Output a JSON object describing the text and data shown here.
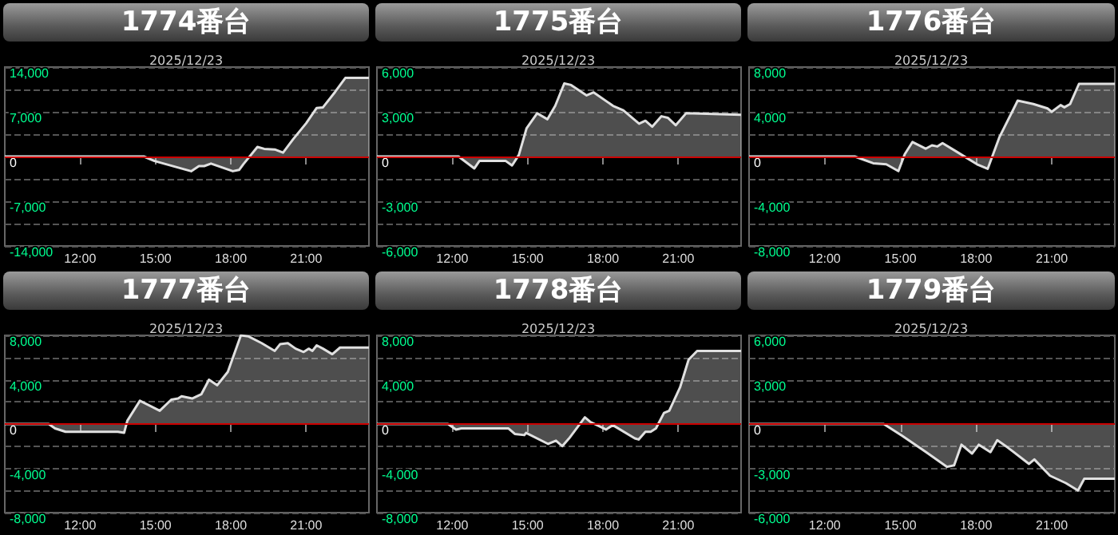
{
  "chart_data": [
    {
      "type": "area",
      "title": "1774番台",
      "subtitle": "2025/12/23",
      "color": "#e0e0e0",
      "grid": "y",
      "x": [
        9,
        14.54,
        14.96,
        16.42,
        16.73,
        16.94,
        17.21,
        18.08,
        18.33,
        18.5,
        19.06,
        19.33,
        19.75,
        20.08,
        20.48,
        21.0,
        21.42,
        21.67,
        22.15,
        22.56,
        23.5
      ],
      "values": [
        0,
        0,
        -700,
        -2300,
        -1500,
        -1500,
        -1100,
        -2300,
        -2100,
        -1200,
        1500,
        1200,
        1100,
        600,
        2700,
        5200,
        7600,
        7700,
        10100,
        12300,
        12300
      ],
      "xlim": [
        9,
        23.5
      ],
      "xticks": [
        {
          "value": 12,
          "label": "12:00"
        },
        {
          "value": 15,
          "label": "15:00"
        },
        {
          "value": 18,
          "label": "18:00"
        },
        {
          "value": 21,
          "label": "21:00"
        }
      ],
      "ylim": [
        -14000,
        14000
      ],
      "yticks": [
        {
          "value": -14000,
          "label": "-14,000"
        },
        {
          "value": -10500,
          "label": null
        },
        {
          "value": -7000,
          "label": "-7,000"
        },
        {
          "value": -3500,
          "label": null
        },
        {
          "value": 0,
          "label": "0"
        },
        {
          "value": 3500,
          "label": null
        },
        {
          "value": 7000,
          "label": "7,000"
        },
        {
          "value": 10500,
          "label": null
        },
        {
          "value": 14000,
          "label": "14,000"
        }
      ],
      "ref_lines": [
        {
          "axis": "y",
          "value": 0,
          "color": "#cc0000"
        }
      ]
    },
    {
      "type": "area",
      "title": "1775番台",
      "subtitle": "2025/12/23",
      "color": "#e0e0e0",
      "grid": "y",
      "x": [
        9,
        12.25,
        12.88,
        13.08,
        14.13,
        14.38,
        14.65,
        14.96,
        15.38,
        15.79,
        16.1,
        16.46,
        16.73,
        17.35,
        17.63,
        18.4,
        18.81,
        19.44,
        19.69,
        19.96,
        20.33,
        20.58,
        20.9,
        21.31,
        23.5
      ],
      "values": [
        0,
        0,
        -800,
        -300,
        -300,
        -600,
        100,
        1900,
        2900,
        2500,
        3400,
        4900,
        4800,
        4100,
        4300,
        3400,
        3100,
        2200,
        2400,
        2000,
        2700,
        2600,
        2100,
        2900,
        2800
      ],
      "xlim": [
        9,
        23.5
      ],
      "xticks": [
        {
          "value": 12,
          "label": "12:00"
        },
        {
          "value": 15,
          "label": "15:00"
        },
        {
          "value": 18,
          "label": "18:00"
        },
        {
          "value": 21,
          "label": "21:00"
        }
      ],
      "ylim": [
        -6000,
        6000
      ],
      "yticks": [
        {
          "value": -6000,
          "label": "-6,000"
        },
        {
          "value": -4500,
          "label": null
        },
        {
          "value": -3000,
          "label": "-3,000"
        },
        {
          "value": -1500,
          "label": null
        },
        {
          "value": 0,
          "label": "0"
        },
        {
          "value": 1500,
          "label": null
        },
        {
          "value": 3000,
          "label": "3,000"
        },
        {
          "value": 4500,
          "label": null
        },
        {
          "value": 6000,
          "label": "6,000"
        }
      ],
      "ref_lines": [
        {
          "axis": "y",
          "value": 0,
          "color": "#cc0000"
        }
      ]
    },
    {
      "type": "area",
      "title": "1776番台",
      "subtitle": "2025/12/23",
      "color": "#e0e0e0",
      "grid": "y",
      "x": [
        9,
        13.19,
        13.92,
        14.44,
        14.92,
        15.17,
        15.48,
        16.0,
        16.25,
        16.46,
        16.67,
        17.25,
        18.04,
        18.46,
        18.92,
        19.65,
        20.27,
        20.83,
        21.0,
        21.35,
        21.5,
        21.73,
        22.08,
        23.5
      ],
      "values": [
        0,
        0,
        -600,
        -700,
        -1300,
        200,
        1300,
        700,
        1000,
        900,
        1200,
        400,
        -700,
        -1100,
        1700,
        5000,
        4700,
        4300,
        4000,
        4600,
        4400,
        4700,
        6500,
        6500
      ],
      "xlim": [
        9,
        23.5
      ],
      "xticks": [
        {
          "value": 12,
          "label": "12:00"
        },
        {
          "value": 15,
          "label": "15:00"
        },
        {
          "value": 18,
          "label": "18:00"
        },
        {
          "value": 21,
          "label": "21:00"
        }
      ],
      "ylim": [
        -8000,
        8000
      ],
      "yticks": [
        {
          "value": -8000,
          "label": "-8,000"
        },
        {
          "value": -6000,
          "label": null
        },
        {
          "value": -4000,
          "label": "-4,000"
        },
        {
          "value": -2000,
          "label": null
        },
        {
          "value": 0,
          "label": "0"
        },
        {
          "value": 2000,
          "label": null
        },
        {
          "value": 4000,
          "label": "4,000"
        },
        {
          "value": 6000,
          "label": null
        },
        {
          "value": 8000,
          "label": "8,000"
        }
      ],
      "ref_lines": [
        {
          "axis": "y",
          "value": 0,
          "color": "#cc0000"
        }
      ]
    },
    {
      "type": "area",
      "title": "1777番台",
      "subtitle": "2025/12/23",
      "color": "#e0e0e0",
      "grid": "y",
      "x": [
        9,
        10.75,
        11.0,
        11.42,
        13.5,
        13.75,
        13.88,
        14.38,
        15.17,
        15.63,
        15.9,
        16.04,
        16.46,
        16.83,
        17.13,
        17.46,
        17.88,
        18.4,
        18.71,
        19.23,
        19.75,
        19.96,
        20.27,
        20.58,
        20.9,
        21.1,
        21.25,
        21.42,
        21.67,
        22.04,
        22.35,
        23.5
      ],
      "values": [
        0,
        0,
        -400,
        -700,
        -700,
        -800,
        300,
        2100,
        1200,
        2200,
        2300,
        2500,
        2300,
        2700,
        4000,
        3500,
        4700,
        8000,
        7900,
        7300,
        6600,
        7200,
        7300,
        6800,
        6500,
        6800,
        6600,
        7100,
        6800,
        6300,
        6900,
        6900
      ],
      "xlim": [
        9,
        23.5
      ],
      "xticks": [
        {
          "value": 12,
          "label": "12:00"
        },
        {
          "value": 15,
          "label": "15:00"
        },
        {
          "value": 18,
          "label": "18:00"
        },
        {
          "value": 21,
          "label": "21:00"
        }
      ],
      "ylim": [
        -8000,
        8000
      ],
      "yticks": [
        {
          "value": -8000,
          "label": "-8,000"
        },
        {
          "value": -6000,
          "label": null
        },
        {
          "value": -4000,
          "label": "-4,000"
        },
        {
          "value": -2000,
          "label": null
        },
        {
          "value": 0,
          "label": "0"
        },
        {
          "value": 2000,
          "label": null
        },
        {
          "value": 4000,
          "label": "4,000"
        },
        {
          "value": 6000,
          "label": null
        },
        {
          "value": 8000,
          "label": "8,000"
        }
      ],
      "ref_lines": [
        {
          "axis": "y",
          "value": 0,
          "color": "#cc0000"
        }
      ]
    },
    {
      "type": "area",
      "title": "1778番台",
      "subtitle": "2025/12/23",
      "color": "#e0e0e0",
      "grid": "y",
      "x": [
        9,
        11.83,
        12.15,
        12.36,
        14.24,
        14.49,
        14.87,
        14.94,
        15.82,
        16.13,
        16.38,
        16.65,
        17.28,
        17.49,
        18.12,
        18.39,
        19.27,
        19.42,
        19.69,
        19.9,
        20.11,
        20.43,
        20.64,
        21.07,
        21.41,
        21.75,
        23.5
      ],
      "values": [
        0,
        0,
        -500,
        -400,
        -400,
        -900,
        -1000,
        -800,
        -1800,
        -1500,
        -2000,
        -1300,
        600,
        200,
        -500,
        -100,
        -1300,
        -1400,
        -700,
        -700,
        -400,
        1000,
        1200,
        3300,
        5800,
        6600,
        6600
      ],
      "xlim": [
        9,
        23.5
      ],
      "xticks": [
        {
          "value": 12,
          "label": "12:00"
        },
        {
          "value": 15,
          "label": "15:00"
        },
        {
          "value": 18,
          "label": "18:00"
        },
        {
          "value": 21,
          "label": "21:00"
        }
      ],
      "ylim": [
        -8000,
        8000
      ],
      "yticks": [
        {
          "value": -8000,
          "label": "-8,000"
        },
        {
          "value": -6000,
          "label": null
        },
        {
          "value": -4000,
          "label": "-4,000"
        },
        {
          "value": -2000,
          "label": null
        },
        {
          "value": 0,
          "label": "0"
        },
        {
          "value": 2000,
          "label": null
        },
        {
          "value": 4000,
          "label": "4,000"
        },
        {
          "value": 6000,
          "label": null
        },
        {
          "value": 8000,
          "label": "8,000"
        }
      ],
      "ref_lines": [
        {
          "axis": "y",
          "value": 0,
          "color": "#cc0000"
        }
      ]
    },
    {
      "type": "area",
      "title": "1779番台",
      "subtitle": "2025/12/23",
      "color": "#e0e0e0",
      "grid": "y",
      "x": [
        9,
        14.34,
        15.07,
        16.02,
        16.85,
        17.13,
        17.42,
        17.84,
        18.11,
        18.57,
        18.84,
        19.26,
        20.1,
        20.31,
        20.93,
        21.56,
        22.04,
        22.29,
        23.5
      ],
      "values": [
        0,
        0,
        -800,
        -1900,
        -2900,
        -2800,
        -1400,
        -2000,
        -1400,
        -1900,
        -1100,
        -1600,
        -2700,
        -2400,
        -3500,
        -4000,
        -4500,
        -3700,
        -3700
      ],
      "xlim": [
        9,
        23.5
      ],
      "xticks": [
        {
          "value": 12,
          "label": "12:00"
        },
        {
          "value": 15,
          "label": "15:00"
        },
        {
          "value": 18,
          "label": "18:00"
        },
        {
          "value": 21,
          "label": "21:00"
        }
      ],
      "ylim": [
        -6000,
        6000
      ],
      "yticks": [
        {
          "value": -6000,
          "label": "-6,000"
        },
        {
          "value": -4500,
          "label": null
        },
        {
          "value": -3000,
          "label": "-3,000"
        },
        {
          "value": -1500,
          "label": null
        },
        {
          "value": 0,
          "label": "0"
        },
        {
          "value": 1500,
          "label": null
        },
        {
          "value": 3000,
          "label": "3,000"
        },
        {
          "value": 4500,
          "label": null
        },
        {
          "value": 6000,
          "label": "6,000"
        }
      ],
      "ref_lines": [
        {
          "axis": "y",
          "value": 0,
          "color": "#cc0000"
        }
      ]
    }
  ]
}
